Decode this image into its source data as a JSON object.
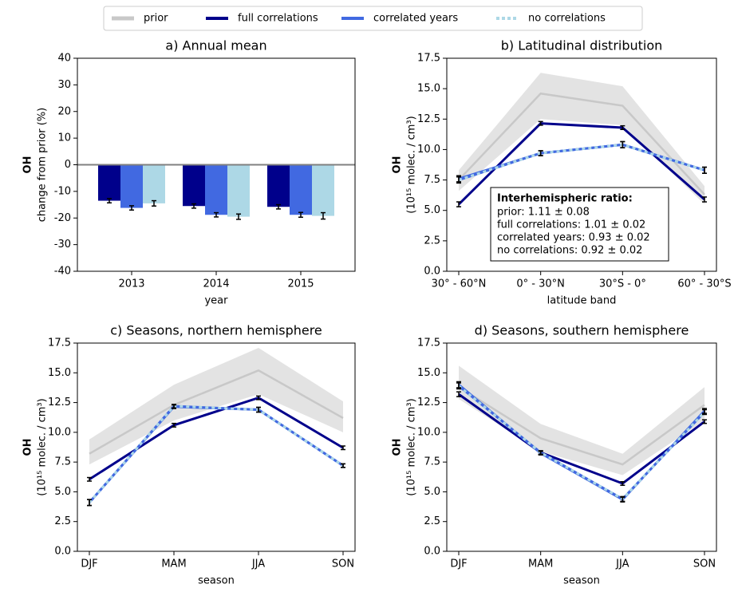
{
  "chart_data": [
    {
      "type": "bar",
      "title": "a) Annual mean",
      "xlabel": "year",
      "ylabel": "OH",
      "ylabel2": "change from prior (%)",
      "categories": [
        "2013",
        "2014",
        "2015"
      ],
      "hline": 0,
      "ylim": [
        -40,
        40
      ],
      "yticks": [
        -40,
        -30,
        -20,
        -10,
        0,
        10,
        20,
        30,
        40
      ],
      "series": [
        {
          "name": "full correlations",
          "color": "#00008b",
          "values": [
            -13.5,
            -15.5,
            -15.8
          ],
          "errors": [
            0.8,
            0.8,
            0.8
          ]
        },
        {
          "name": "correlated years",
          "color": "#4169e1",
          "values": [
            -16.2,
            -18.8,
            -18.8
          ],
          "errors": [
            0.8,
            0.8,
            0.9
          ]
        },
        {
          "name": "no correlations",
          "color": "#add8e6",
          "values": [
            -14.5,
            -19.5,
            -19.2
          ],
          "errors": [
            1.0,
            1.0,
            1.2
          ]
        }
      ]
    },
    {
      "type": "line",
      "title": "b) Latitudinal distribution",
      "xlabel": "latitude band",
      "ylabel": "OH",
      "ylabel2": "(10¹⁵ molec. / cm³)",
      "categories": [
        "30° - 60°N",
        "0° - 30°N",
        "30°S -  0°",
        "60° - 30°S"
      ],
      "ylim": [
        0,
        17.5
      ],
      "yticks": [
        {
          "value": 0,
          "label": "0.0"
        },
        2.5,
        {
          "value": 5,
          "label": "5.0"
        },
        7.5,
        {
          "value": 10,
          "label": "10.0"
        },
        12.5,
        {
          "value": 15,
          "label": "15.0"
        },
        17.5
      ],
      "annotation": {
        "title": "Interhemispheric ratio:",
        "lines": [
          "prior: 1.11 ± 0.08",
          "full correlations: 1.01 ± 0.02",
          "correlated years: 0.93 ± 0.02",
          "no correlations: 0.92 ± 0.02"
        ]
      },
      "series": [
        {
          "name": "prior",
          "color": "#c8c8c8",
          "band_color": "#e3e3e3",
          "values": [
            7.5,
            14.6,
            13.6,
            6.3
          ],
          "lower": [
            6.6,
            12.5,
            12.0,
            5.5
          ],
          "upper": [
            8.3,
            16.3,
            15.2,
            7.0
          ]
        },
        {
          "name": "full correlations",
          "color": "#00008b",
          "values": [
            5.5,
            12.15,
            11.8,
            5.9
          ],
          "errors": [
            0.2,
            0.15,
            0.15,
            0.2
          ]
        },
        {
          "name": "correlated years",
          "color": "#4169e1",
          "values": [
            7.6,
            9.7,
            10.4,
            8.3
          ],
          "errors": [
            0.25,
            0.2,
            0.25,
            0.25
          ]
        },
        {
          "name": "no correlations",
          "color": "#add8e6",
          "linestyle": "dashed",
          "values": [
            7.5,
            9.7,
            10.4,
            8.3
          ],
          "errors": [
            0.25,
            0.2,
            0.25,
            0.25
          ]
        }
      ]
    },
    {
      "type": "line",
      "title": "c) Seasons, northern hemisphere",
      "xlabel": "season",
      "ylabel": "OH",
      "ylabel2": "(10¹⁵ molec. / cm³)",
      "categories": [
        "DJF",
        "MAM",
        "JJA",
        "SON"
      ],
      "ylim": [
        0,
        17.5
      ],
      "yticks": [
        {
          "value": 0,
          "label": "0.0"
        },
        2.5,
        {
          "value": 5,
          "label": "5.0"
        },
        7.5,
        {
          "value": 10,
          "label": "10.0"
        },
        12.5,
        {
          "value": 15,
          "label": "15.0"
        },
        17.5
      ],
      "series": [
        {
          "name": "prior",
          "color": "#c8c8c8",
          "band_color": "#e3e3e3",
          "values": [
            8.2,
            12.3,
            15.2,
            11.2
          ],
          "lower": [
            7.3,
            11.0,
            13.2,
            10.0
          ],
          "upper": [
            9.4,
            14.0,
            17.1,
            12.6
          ]
        },
        {
          "name": "full correlations",
          "color": "#00008b",
          "values": [
            6.05,
            10.6,
            12.9,
            8.7
          ],
          "errors": [
            0.15,
            0.15,
            0.15,
            0.15
          ]
        },
        {
          "name": "correlated years",
          "color": "#4169e1",
          "values": [
            4.1,
            12.15,
            11.9,
            7.2
          ],
          "errors": [
            0.25,
            0.15,
            0.2,
            0.15
          ]
        },
        {
          "name": "no correlations",
          "color": "#add8e6",
          "linestyle": "dashed",
          "values": [
            4.1,
            12.2,
            11.9,
            7.2
          ],
          "errors": [
            0.25,
            0.15,
            0.2,
            0.15
          ]
        }
      ]
    },
    {
      "type": "line",
      "title": "d) Seasons, southern hemisphere",
      "xlabel": "season",
      "ylabel": "OH",
      "ylabel2": "(10¹⁵ molec. / cm³)",
      "categories": [
        "DJF",
        "MAM",
        "JJA",
        "SON"
      ],
      "ylim": [
        0,
        17.5
      ],
      "yticks": [
        {
          "value": 0,
          "label": "0.0"
        },
        2.5,
        {
          "value": 5,
          "label": "5.0"
        },
        7.5,
        {
          "value": 10,
          "label": "10.0"
        },
        12.5,
        {
          "value": 15,
          "label": "15.0"
        },
        17.5
      ],
      "series": [
        {
          "name": "prior",
          "color": "#c8c8c8",
          "band_color": "#e3e3e3",
          "values": [
            13.8,
            9.5,
            7.3,
            12.3
          ],
          "lower": [
            12.8,
            8.4,
            6.4,
            11.0
          ],
          "upper": [
            15.6,
            10.7,
            8.2,
            13.8
          ]
        },
        {
          "name": "full correlations",
          "color": "#00008b",
          "values": [
            13.2,
            8.3,
            5.7,
            10.9
          ],
          "errors": [
            0.2,
            0.15,
            0.15,
            0.15
          ]
        },
        {
          "name": "correlated years",
          "color": "#4169e1",
          "values": [
            14.0,
            8.25,
            4.35,
            11.8
          ],
          "errors": [
            0.25,
            0.15,
            0.2,
            0.2
          ]
        },
        {
          "name": "no correlations",
          "color": "#add8e6",
          "linestyle": "dashed",
          "values": [
            13.9,
            8.3,
            4.4,
            11.7
          ],
          "errors": [
            0.25,
            0.15,
            0.2,
            0.2
          ]
        }
      ]
    }
  ]
}
